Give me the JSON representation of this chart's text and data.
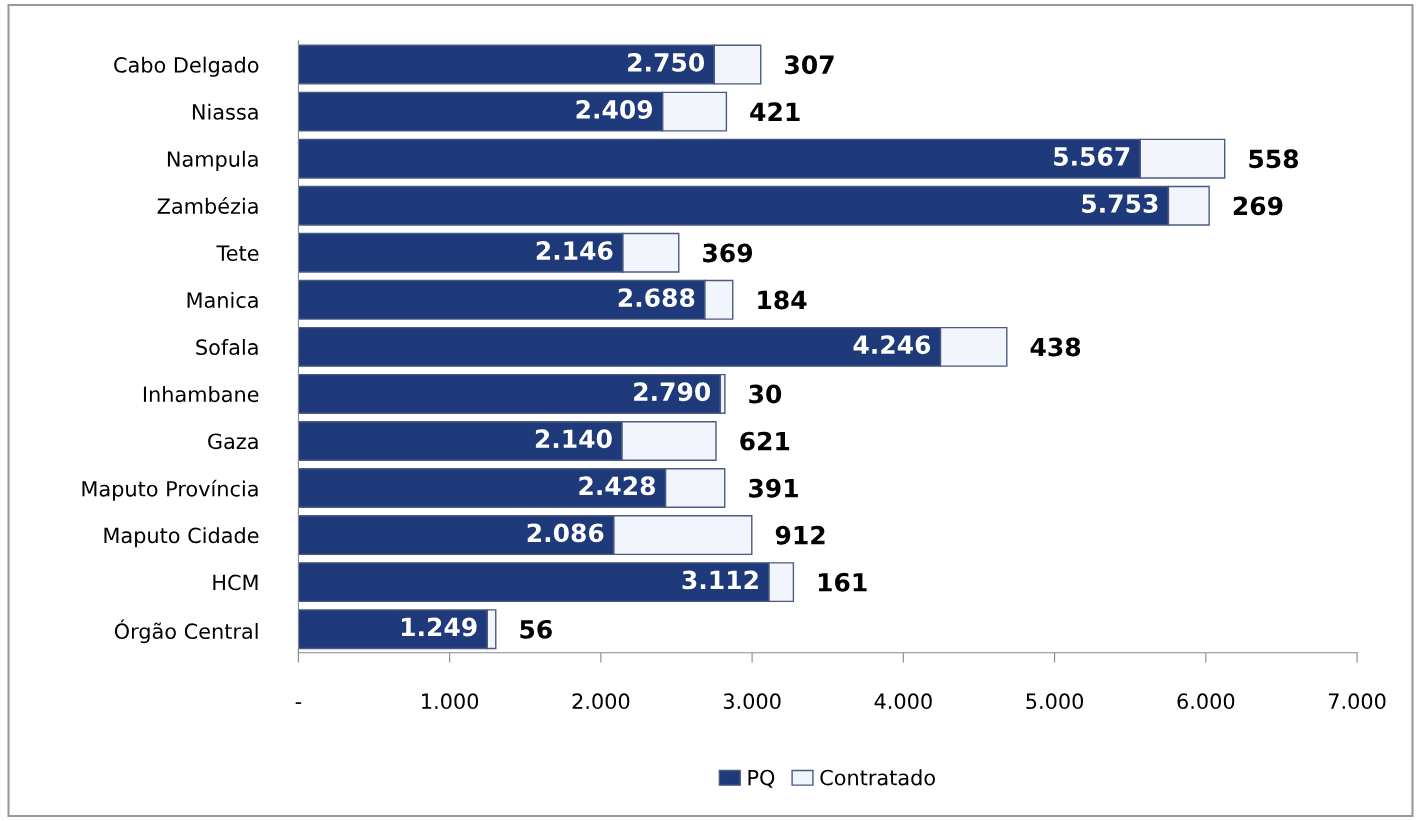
{
  "chart_data": {
    "type": "bar",
    "orientation": "horizontal",
    "stacked": true,
    "categories": [
      "Cabo Delgado",
      "Niassa",
      "Nampula",
      "Zambézia",
      "Tete",
      "Manica",
      "Sofala",
      "Inhambane",
      "Gaza",
      "Maputo Província",
      "Maputo Cidade",
      "HCM",
      "Órgão Central"
    ],
    "series": [
      {
        "name": "PQ",
        "color": "#1f3a7a",
        "values": [
          2750,
          2409,
          5567,
          5753,
          2146,
          2688,
          4246,
          2790,
          2140,
          2428,
          2086,
          3112,
          1249
        ],
        "value_labels": [
          "2.750",
          "2.409",
          "5.567",
          "5.753",
          "2.146",
          "2.688",
          "4.246",
          "2.790",
          "2.140",
          "2.428",
          "2.086",
          "3.112",
          "1.249"
        ]
      },
      {
        "name": "Contratado",
        "color": "#f2f5fb",
        "values": [
          307,
          421,
          558,
          269,
          369,
          184,
          438,
          30,
          621,
          391,
          912,
          161,
          56
        ],
        "value_labels": [
          "307",
          "421",
          "558",
          "269",
          "369",
          "184",
          "438",
          "30",
          "621",
          "391",
          "912",
          "161",
          "56"
        ]
      }
    ],
    "xlim": [
      0,
      7000
    ],
    "xticks": [
      {
        "value": 0,
        "label": "-"
      },
      {
        "value": 1000,
        "label": "1.000"
      },
      {
        "value": 2000,
        "label": "2.000"
      },
      {
        "value": 3000,
        "label": "3.000"
      },
      {
        "value": 4000,
        "label": "4.000"
      },
      {
        "value": 5000,
        "label": "5.000"
      },
      {
        "value": 6000,
        "label": "6.000"
      },
      {
        "value": 7000,
        "label": "7.000"
      }
    ],
    "grid": false,
    "legend": "bottom"
  }
}
